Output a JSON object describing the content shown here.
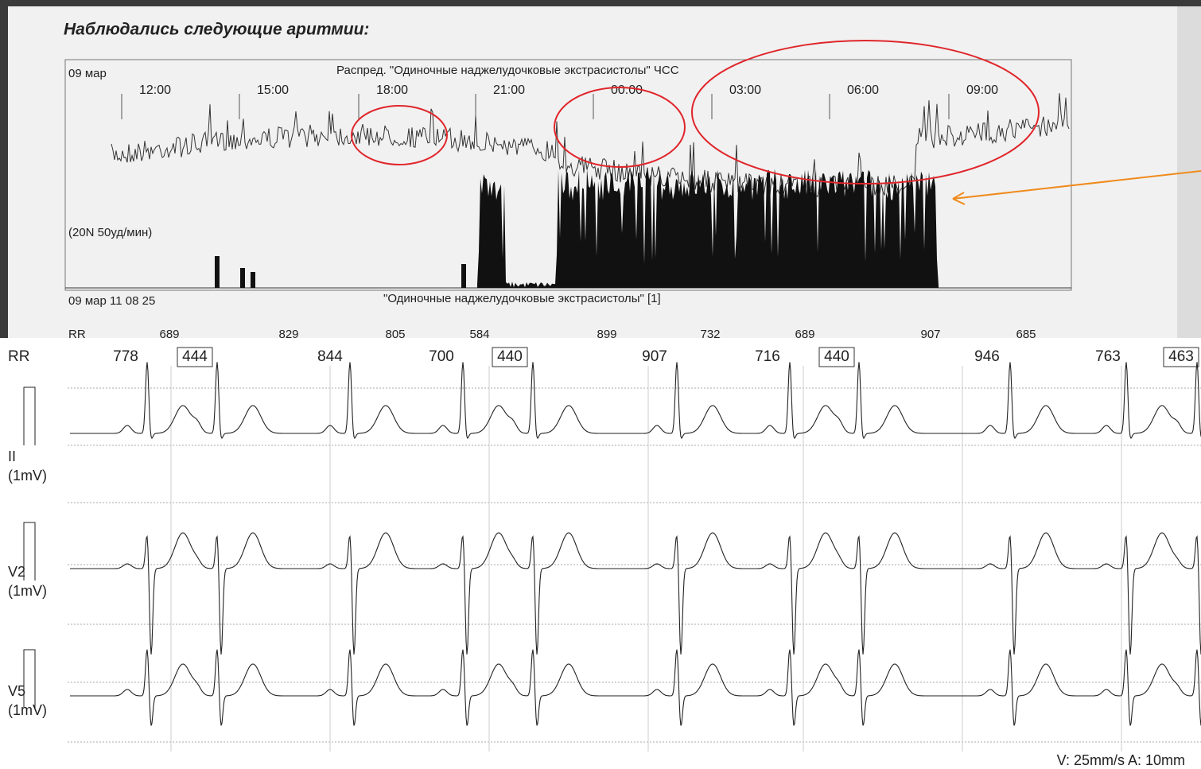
{
  "header": {
    "title": "Наблюдались следующие аритмии:"
  },
  "trend": {
    "date": "09 мар",
    "title": "Распред. \"Одиночные наджелудочковые экстрасистолы\" ЧСС",
    "times": [
      "12:00",
      "15:00",
      "18:00",
      "21:00",
      "00:00",
      "03:00",
      "06:00",
      "09:00"
    ],
    "scale": "(20N 50уд/мин)",
    "strip_time": "09 мар 11 08 25",
    "strip_title": "\"Одиночные наджелудочковые экстрасистолы\" [1]",
    "rr_label": "RR",
    "rr_values": [
      689,
      829,
      805,
      584,
      899,
      732,
      689,
      907,
      685
    ]
  },
  "ecg": {
    "rr_label": "RR",
    "intervals": [
      {
        "value": 778,
        "boxed": false
      },
      {
        "value": 444,
        "boxed": true
      },
      {
        "value": 844,
        "boxed": false
      },
      {
        "value": 700,
        "boxed": false
      },
      {
        "value": 440,
        "boxed": true
      },
      {
        "value": 907,
        "boxed": false
      },
      {
        "value": 716,
        "boxed": false
      },
      {
        "value": 440,
        "boxed": true
      },
      {
        "value": 946,
        "boxed": false
      },
      {
        "value": 763,
        "boxed": false
      },
      {
        "value": 463,
        "boxed": true
      }
    ],
    "leads": [
      {
        "name": "II",
        "gain": "(1mV)"
      },
      {
        "name": "V2",
        "gain": "(1mV)"
      },
      {
        "name": "V5",
        "gain": "(1mV)"
      }
    ],
    "footer": "V: 25mm/s  A: 10mm"
  }
}
